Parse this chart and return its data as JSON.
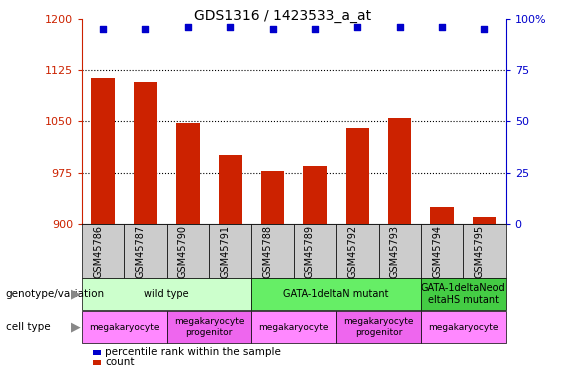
{
  "title": "GDS1316 / 1423533_a_at",
  "samples": [
    "GSM45786",
    "GSM45787",
    "GSM45790",
    "GSM45791",
    "GSM45788",
    "GSM45789",
    "GSM45792",
    "GSM45793",
    "GSM45794",
    "GSM45795"
  ],
  "counts": [
    1113,
    1108,
    1047,
    1000,
    977,
    985,
    1040,
    1055,
    925,
    910
  ],
  "percentile_ranks": [
    95,
    95,
    96,
    96,
    95,
    95,
    96,
    96,
    96,
    95
  ],
  "ylim_left": [
    900,
    1200
  ],
  "ylim_right": [
    0,
    100
  ],
  "yticks_left": [
    900,
    975,
    1050,
    1125,
    1200
  ],
  "yticks_right": [
    0,
    25,
    50,
    75,
    100
  ],
  "bar_color": "#cc2200",
  "dot_color": "#0000cc",
  "genotype_groups": [
    {
      "label": "wild type",
      "start": 0,
      "end": 4,
      "color": "#ccffcc"
    },
    {
      "label": "GATA-1deltaN mutant",
      "start": 4,
      "end": 8,
      "color": "#66ee66"
    },
    {
      "label": "GATA-1deltaNeod\neltaHS mutant",
      "start": 8,
      "end": 10,
      "color": "#44cc44"
    }
  ],
  "cell_type_groups": [
    {
      "label": "megakaryocyte",
      "start": 0,
      "end": 2,
      "color": "#ff88ff"
    },
    {
      "label": "megakaryocyte\nprogenitor",
      "start": 2,
      "end": 4,
      "color": "#ee66ee"
    },
    {
      "label": "megakaryocyte",
      "start": 4,
      "end": 6,
      "color": "#ff88ff"
    },
    {
      "label": "megakaryocyte\nprogenitor",
      "start": 6,
      "end": 8,
      "color": "#ee66ee"
    },
    {
      "label": "megakaryocyte",
      "start": 8,
      "end": 10,
      "color": "#ff88ff"
    }
  ],
  "legend_count_color": "#cc2200",
  "legend_pct_color": "#0000cc",
  "left_axis_color": "#cc2200",
  "right_axis_color": "#0000cc",
  "grid_ticks": [
    975,
    1050,
    1125
  ],
  "xticklabel_bg": "#cccccc"
}
